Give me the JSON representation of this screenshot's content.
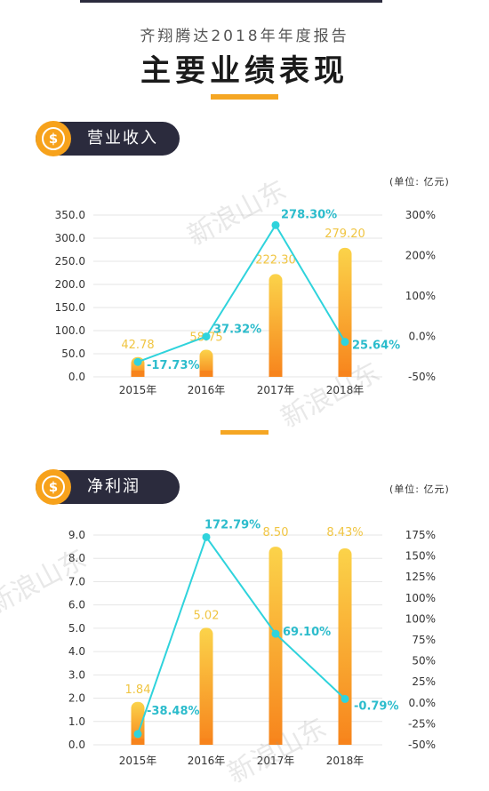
{
  "header": {
    "subtitle": "齐翔腾达2018年年度报告",
    "title": "主要业绩表现"
  },
  "watermark_text": "新浪山东",
  "sections": [
    {
      "label": "营业收入",
      "unit": "(单位: 亿元)",
      "icon": "dollar-coin-icon"
    },
    {
      "label": "净利润",
      "unit": "(单位: 亿元)",
      "icon": "dollar-coin-icon"
    }
  ],
  "colors": {
    "bar_top": "#fbd34a",
    "bar_bottom": "#f7841c",
    "value_label": "#f0c542",
    "line": "#2fd3dc",
    "pct_label": "#2cbccc",
    "grid": "#e6e6e6",
    "pill": "#2b2b3d",
    "accent": "#f5a623"
  },
  "chart_data": [
    {
      "type": "bar",
      "categories": [
        "2015年",
        "2016年",
        "2017年",
        "2018年"
      ],
      "series": [
        {
          "values": [
            42.78,
            58.75,
            222.3,
            279.2
          ],
          "labels": [
            "42.78",
            "58.75",
            "222.30",
            "279.20"
          ]
        },
        {
          "kind": "line",
          "axis": "right",
          "values": [
            -17.73,
            37.32,
            278.3,
            25.64
          ],
          "labels": [
            "-17.73%",
            "37.32%",
            "278.30%",
            "25.64%"
          ]
        }
      ],
      "y_ticks": [
        "350.0",
        "300.0",
        "250.0",
        "200.0",
        "150.0",
        "100.0",
        "50.0",
        "0.0"
      ],
      "y2_ticks": [
        "300%",
        "200%",
        "100%",
        "0.0%",
        "-50%"
      ],
      "ylim": [
        0,
        350
      ],
      "y2lim": [
        -50,
        300
      ],
      "grid": true
    },
    {
      "type": "bar",
      "categories": [
        "2015年",
        "2016年",
        "2017年",
        "2018年"
      ],
      "series": [
        {
          "values": [
            1.84,
            5.02,
            8.5,
            8.43
          ],
          "labels": [
            "1.84",
            "5.02",
            "8.50",
            "8.43%"
          ]
        },
        {
          "kind": "line",
          "axis": "right",
          "values": [
            -38.48,
            172.79,
            69.1,
            -0.79
          ],
          "labels": [
            "-38.48%",
            "172.79%",
            "69.10%",
            "-0.79%"
          ]
        }
      ],
      "y_ticks": [
        "9.0",
        "8.0",
        "7.0",
        "6.0",
        "5.0",
        "4.0",
        "3.0",
        "2.0",
        "1.0",
        "0.0"
      ],
      "y2_ticks": [
        "175%",
        "150%",
        "125%",
        "100%",
        "100%",
        "75%",
        "50%",
        "25%",
        "0.0%",
        "-25%",
        "-50%"
      ],
      "ylim": [
        0,
        9
      ],
      "y2lim": [
        -50,
        175
      ],
      "grid": true
    }
  ]
}
